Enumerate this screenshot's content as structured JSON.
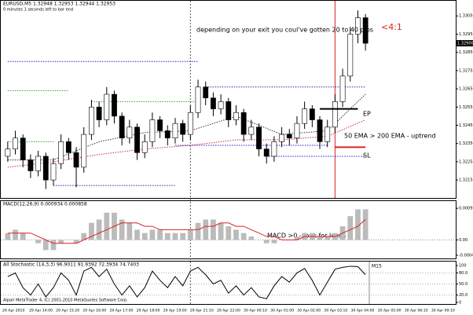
{
  "chart_data": [
    {
      "type": "candlestick",
      "title": "EURUSD,M5  1.32948 1.32953 1.32944 1.32953",
      "subtitle": "0 minutes 1 seconds left to bar end",
      "open": [
        1.3228,
        1.3232,
        1.3238,
        1.3226,
        1.322,
        1.3228,
        1.3215,
        1.3224,
        1.3236,
        1.323,
        1.3222,
        1.324,
        1.3255,
        1.3248,
        1.3262,
        1.325,
        1.3238,
        1.3244,
        1.323,
        1.3236,
        1.3248,
        1.3242,
        1.3238,
        1.3246,
        1.324,
        1.3252,
        1.3266,
        1.326,
        1.3254,
        1.3258,
        1.3248,
        1.3252,
        1.324,
        1.3244,
        1.3232,
        1.3228,
        1.3236,
        1.324,
        1.3238,
        1.3246,
        1.3254,
        1.3248,
        1.3236,
        1.3244,
        1.3258,
        1.3272,
        1.3295,
        1.3304
      ],
      "high": [
        1.3236,
        1.3242,
        1.324,
        1.3229,
        1.3231,
        1.323,
        1.3227,
        1.324,
        1.3238,
        1.3233,
        1.3244,
        1.3259,
        1.3258,
        1.3266,
        1.3264,
        1.3252,
        1.3248,
        1.3246,
        1.324,
        1.3252,
        1.325,
        1.3245,
        1.3249,
        1.3248,
        1.3256,
        1.327,
        1.3269,
        1.3263,
        1.3262,
        1.326,
        1.3256,
        1.3254,
        1.3248,
        1.3246,
        1.3235,
        1.3239,
        1.3244,
        1.3243,
        1.325,
        1.3258,
        1.3256,
        1.325,
        1.3248,
        1.3262,
        1.3276,
        1.3299,
        1.3308,
        1.3306
      ],
      "low": [
        1.3225,
        1.3229,
        1.3222,
        1.3216,
        1.3217,
        1.321,
        1.3212,
        1.3221,
        1.3226,
        1.3211,
        1.3219,
        1.3237,
        1.3244,
        1.3245,
        1.3246,
        1.3234,
        1.3235,
        1.3226,
        1.3227,
        1.3233,
        1.3238,
        1.3234,
        1.3235,
        1.3236,
        1.3237,
        1.3249,
        1.3256,
        1.325,
        1.3251,
        1.3244,
        1.3245,
        1.3236,
        1.3237,
        1.3228,
        1.3224,
        1.3225,
        1.3233,
        1.3234,
        1.3235,
        1.3243,
        1.3244,
        1.3232,
        1.3233,
        1.3241,
        1.3255,
        1.3269,
        1.329,
        1.3286
      ],
      "close": [
        1.3232,
        1.3238,
        1.3226,
        1.322,
        1.3228,
        1.3215,
        1.3224,
        1.3236,
        1.323,
        1.3222,
        1.324,
        1.3255,
        1.3248,
        1.3262,
        1.325,
        1.3238,
        1.3244,
        1.323,
        1.3236,
        1.3248,
        1.3242,
        1.3238,
        1.3246,
        1.324,
        1.3252,
        1.3266,
        1.326,
        1.3254,
        1.3258,
        1.3248,
        1.3252,
        1.324,
        1.3244,
        1.3232,
        1.3228,
        1.3236,
        1.324,
        1.3238,
        1.3246,
        1.3254,
        1.3248,
        1.3236,
        1.3244,
        1.3258,
        1.3272,
        1.3295,
        1.3304,
        1.329
      ],
      "ema50": {
        "x": [
          0,
          6,
          12,
          18,
          24,
          30,
          36,
          42,
          47
        ],
        "values": [
          1.3226,
          1.3226,
          1.3236,
          1.3241,
          1.3242,
          1.325,
          1.324,
          1.3242,
          1.3262
        ],
        "color": "#333333"
      },
      "ema200": {
        "x": [
          0,
          6,
          12,
          18,
          24,
          30,
          36,
          42,
          47
        ],
        "values": [
          1.3222,
          1.3225,
          1.3229,
          1.3232,
          1.3234,
          1.3237,
          1.3237,
          1.3239,
          1.3248
        ],
        "color": "#cc3333"
      },
      "levels": [
        {
          "price": 1.328,
          "from": 0,
          "to": 25,
          "color": "#2222cc"
        },
        {
          "price": 1.3212,
          "from": 6,
          "to": 22,
          "color": "#2222cc"
        },
        {
          "price": 1.3264,
          "from": 0,
          "to": 8,
          "color": "#22aa22"
        },
        {
          "price": 1.3258,
          "from": 11,
          "to": 25,
          "color": "#22aa22"
        },
        {
          "price": 1.3236,
          "from": 0,
          "to": 6,
          "color": "#22aa22"
        },
        {
          "price": 1.3266,
          "from": 26,
          "to": 47,
          "color": "#2222cc"
        },
        {
          "price": 1.3234,
          "from": 22,
          "to": 42,
          "color": "#2222cc"
        },
        {
          "price": 1.3228,
          "from": 34,
          "to": 47,
          "color": "#2222cc"
        }
      ],
      "entry": {
        "price": 1.3254,
        "from": 41,
        "to": 46,
        "color": "#000000"
      },
      "stop": {
        "price": 1.3233,
        "from": 43,
        "to": 47,
        "color": "#dd2222"
      },
      "vlines": [
        {
          "x": 24,
          "color": "#555555"
        },
        {
          "x": 43,
          "color": "#dd2222"
        }
      ],
      "bid": {
        "value": 1.329,
        "label": "1.32900"
      },
      "ylim": [
        1.3206,
        1.3312
      ],
      "yticks": [
        {
          "value": 1.3215,
          "label": "1.32150"
        },
        {
          "value": 1.3225,
          "label": "1.32250"
        },
        {
          "value": 1.3235,
          "label": "1.32350"
        },
        {
          "value": 1.3245,
          "label": "1.32450"
        },
        {
          "value": 1.3255,
          "label": "1.32550"
        },
        {
          "value": 1.3265,
          "label": "1.32650"
        },
        {
          "value": 1.3275,
          "label": "1.32750"
        },
        {
          "value": 1.3285,
          "label": "1.32850"
        },
        {
          "value": 1.3295,
          "label": "1.32950"
        },
        {
          "value": 1.3305,
          "label": "1.33050"
        }
      ],
      "annotations": [
        {
          "text": "depending on your exit you coul've gotten 20 to 40 pips",
          "color": "#000000"
        },
        {
          "text": "<4:1",
          "color": "#dd2222"
        },
        {
          "text": "EP",
          "color": "#000000"
        },
        {
          "text": "50 EMA > 200 EMA - uptrend",
          "color": "#000000"
        },
        {
          "text": "SL",
          "color": "#000000"
        }
      ],
      "categories": [
        "29 Apr 2010",
        "29 Apr 14:00",
        "29 Apr 15:20",
        "29 Apr 16:00",
        "29 Apr 17:00",
        "29 Apr 18:00",
        "29 Apr 19:00",
        "29 Apr 21:10",
        "29 Apr 22:00",
        "30 Apr 00:10",
        "30 Apr 01:00",
        "30 Apr 02:00",
        "30 Apr 03:10",
        "30 Apr 04:00",
        "30 Apr 05:00",
        "30 Apr 06:10",
        "30 Apr 09:10"
      ],
      "footer": "Alpari MetaTrader 4, (C) 2001-2010 MetaQuotes Software Corp."
    },
    {
      "type": "bar",
      "title": "MACD(12,26,9) 0.000934 0.000858",
      "color": "#bbbbbb",
      "signal_color": "#dd2222",
      "values": [
        0.0002,
        0.0003,
        0.0002,
        0.0,
        -0.0001,
        -0.0003,
        -0.0003,
        -0.0001,
        0.0,
        -0.0001,
        0.0002,
        0.0005,
        0.0006,
        0.0008,
        0.0008,
        0.0006,
        0.0005,
        0.0003,
        0.0002,
        0.0003,
        0.0003,
        0.0002,
        0.0002,
        0.0002,
        0.0003,
        0.0005,
        0.0006,
        0.0006,
        0.0005,
        0.0004,
        0.0003,
        0.0002,
        0.0001,
        0.0,
        -0.0001,
        -0.0001,
        0.0,
        0.0,
        0.0001,
        0.0002,
        0.0002,
        0.0001,
        0.0001,
        0.0002,
        0.0004,
        0.0007,
        0.0009,
        0.0009
      ],
      "signal": [
        0.0002,
        0.0002,
        0.0002,
        0.0002,
        0.0001,
        0.0,
        -0.0001,
        -0.0001,
        -0.0001,
        -0.0001,
        0.0,
        0.0001,
        0.0002,
        0.0003,
        0.0004,
        0.0005,
        0.0005,
        0.0005,
        0.0004,
        0.0004,
        0.0003,
        0.0003,
        0.0003,
        0.0003,
        0.0003,
        0.0003,
        0.0004,
        0.0004,
        0.0005,
        0.0005,
        0.0004,
        0.0004,
        0.0003,
        0.0002,
        0.0001,
        0.0001,
        0.0,
        0.0,
        0.0,
        0.0001,
        0.0001,
        0.0001,
        0.0001,
        0.0001,
        0.0002,
        0.0003,
        0.0004,
        0.0006
      ],
      "ylim": [
        -0.0005,
        0.00098
      ],
      "yticks": [
        {
          "value": 0.00093,
          "label": "0.000934"
        },
        {
          "value": 0,
          "label": "0.00"
        },
        {
          "value": -0.00045,
          "label": "-0.000449"
        }
      ],
      "annotation": "MACD >0 - look for longs"
    },
    {
      "type": "line",
      "title": "All Stochastic (14,3,3) 96.9011 91.9392 72.3934 74.7403",
      "label": "M15",
      "color": "#000000",
      "values": [
        70,
        80,
        40,
        20,
        50,
        15,
        40,
        80,
        60,
        20,
        85,
        95,
        70,
        90,
        50,
        20,
        45,
        15,
        40,
        85,
        60,
        40,
        70,
        45,
        85,
        95,
        75,
        50,
        60,
        25,
        45,
        20,
        40,
        15,
        10,
        45,
        70,
        55,
        80,
        92,
        60,
        20,
        55,
        90,
        95,
        98,
        97,
        75
      ],
      "ylim": [
        0,
        100
      ],
      "yticks": [
        0,
        {
          "value": 20,
          "label": "20.0"
        },
        {
          "value": 50,
          "label": "50.0"
        },
        {
          "value": 80,
          "label": "80.0"
        },
        100
      ]
    }
  ]
}
